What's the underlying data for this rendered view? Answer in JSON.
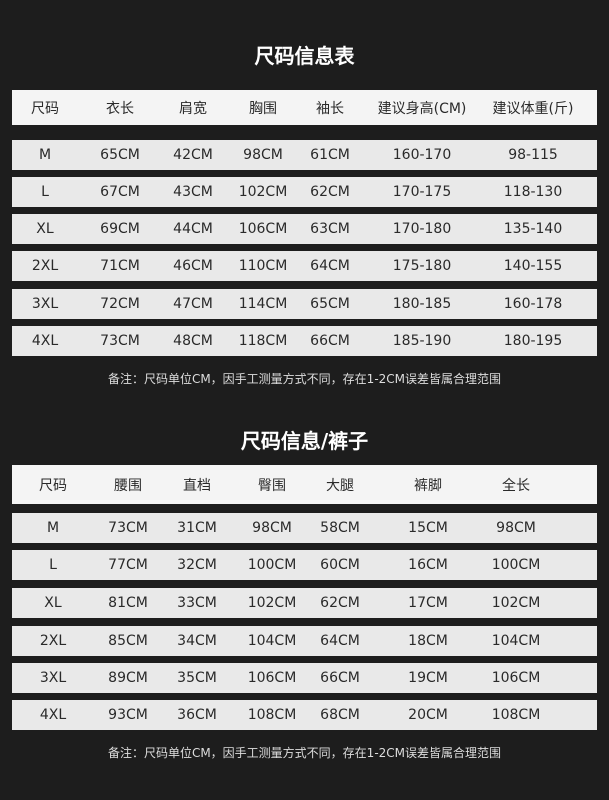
{
  "tops": {
    "title": "尺码信息表",
    "headers": [
      "尺码",
      "衣长",
      "肩宽",
      "胸围",
      "袖长",
      "建议身高(CM)",
      "建议体重(斤)"
    ],
    "rows": [
      [
        "M",
        "65CM",
        "42CM",
        "98CM",
        "61CM",
        "160-170",
        "98-115"
      ],
      [
        "L",
        "67CM",
        "43CM",
        "102CM",
        "62CM",
        "170-175",
        "118-130"
      ],
      [
        "XL",
        "69CM",
        "44CM",
        "106CM",
        "63CM",
        "170-180",
        "135-140"
      ],
      [
        "2XL",
        "71CM",
        "46CM",
        "110CM",
        "64CM",
        "175-180",
        "140-155"
      ],
      [
        "3XL",
        "72CM",
        "47CM",
        "114CM",
        "65CM",
        "180-185",
        "160-178"
      ],
      [
        "4XL",
        "73CM",
        "48CM",
        "118CM",
        "66CM",
        "185-190",
        "180-195"
      ]
    ],
    "note": "备注：尺码单位CM，因手工测量方式不同，存在1-2CM误差皆属合理范围"
  },
  "pants": {
    "title": "尺码信息/裤子",
    "headers": [
      "尺码",
      "腰围",
      "直档",
      "臀围",
      "大腿",
      "裤脚",
      "全长"
    ],
    "rows": [
      [
        "M",
        "73CM",
        "31CM",
        "98CM",
        "58CM",
        "15CM",
        "98CM"
      ],
      [
        "L",
        "77CM",
        "32CM",
        "100CM",
        "60CM",
        "16CM",
        "100CM"
      ],
      [
        "XL",
        "81CM",
        "33CM",
        "102CM",
        "62CM",
        "17CM",
        "102CM"
      ],
      [
        "2XL",
        "85CM",
        "34CM",
        "104CM",
        "64CM",
        "18CM",
        "104CM"
      ],
      [
        "3XL",
        "89CM",
        "35CM",
        "106CM",
        "66CM",
        "19CM",
        "106CM"
      ],
      [
        "4XL",
        "93CM",
        "36CM",
        "108CM",
        "68CM",
        "20CM",
        "108CM"
      ]
    ],
    "note": "备注：尺码单位CM，因手工测量方式不同，存在1-2CM误差皆属合理范围"
  }
}
